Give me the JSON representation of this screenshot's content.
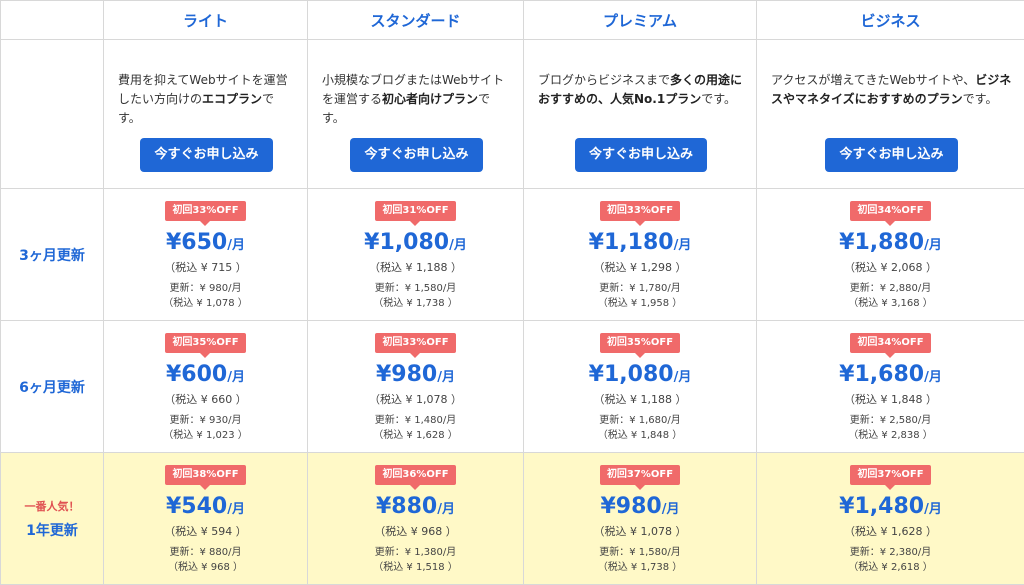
{
  "plans": [
    {
      "name": "ライト",
      "desc_plain": "費用を抑えてWebサイトを運営したい方向けの",
      "desc_bold": "エコプラン",
      "desc_tail": "です。",
      "button": "今すぐお申し込み"
    },
    {
      "name": "スタンダード",
      "desc_plain": "小規模なブログまたはWebサイトを運営する",
      "desc_bold": "初心者向けプラン",
      "desc_tail": "です。",
      "button": "今すぐお申し込み"
    },
    {
      "name": "プレミアム",
      "desc_plain": "ブログからビジネスまで",
      "desc_bold": "多くの用途におすすめの、人気No.1プラン",
      "desc_tail": "です。",
      "button": "今すぐお申し込み"
    },
    {
      "name": "ビジネス",
      "desc_plain": "アクセスが増えてきたWebサイトや、",
      "desc_bold": "ビジネスやマネタイズにおすすめのプラン",
      "desc_tail": "です。",
      "button": "今すぐお申し込み"
    }
  ],
  "rows": [
    {
      "label": "3ヶ月更新",
      "popular": "",
      "cells": [
        {
          "badge": "初回33%OFF",
          "price": "¥650",
          "unit": "/月",
          "tax": "（税込 ¥ 715 ）",
          "renew": "更新：¥ 980/月",
          "renew_tax": "（税込 ¥ 1,078 ）"
        },
        {
          "badge": "初回31%OFF",
          "price": "¥1,080",
          "unit": "/月",
          "tax": "（税込 ¥ 1,188 ）",
          "renew": "更新：¥ 1,580/月",
          "renew_tax": "（税込 ¥ 1,738 ）"
        },
        {
          "badge": "初回33%OFF",
          "price": "¥1,180",
          "unit": "/月",
          "tax": "（税込 ¥ 1,298 ）",
          "renew": "更新：¥ 1,780/月",
          "renew_tax": "（税込 ¥ 1,958 ）"
        },
        {
          "badge": "初回34%OFF",
          "price": "¥1,880",
          "unit": "/月",
          "tax": "（税込 ¥ 2,068 ）",
          "renew": "更新：¥ 2,880/月",
          "renew_tax": "（税込 ¥ 3,168 ）"
        }
      ]
    },
    {
      "label": "6ヶ月更新",
      "popular": "",
      "cells": [
        {
          "badge": "初回35%OFF",
          "price": "¥600",
          "unit": "/月",
          "tax": "（税込 ¥ 660 ）",
          "renew": "更新：¥ 930/月",
          "renew_tax": "（税込 ¥ 1,023 ）"
        },
        {
          "badge": "初回33%OFF",
          "price": "¥980",
          "unit": "/月",
          "tax": "（税込 ¥ 1,078 ）",
          "renew": "更新：¥ 1,480/月",
          "renew_tax": "（税込 ¥ 1,628 ）"
        },
        {
          "badge": "初回35%OFF",
          "price": "¥1,080",
          "unit": "/月",
          "tax": "（税込 ¥ 1,188 ）",
          "renew": "更新：¥ 1,680/月",
          "renew_tax": "（税込 ¥ 1,848 ）"
        },
        {
          "badge": "初回34%OFF",
          "price": "¥1,680",
          "unit": "/月",
          "tax": "（税込 ¥ 1,848 ）",
          "renew": "更新：¥ 2,580/月",
          "renew_tax": "（税込 ¥ 2,838 ）"
        }
      ]
    },
    {
      "label": "1年更新",
      "popular": "一番人気！",
      "cells": [
        {
          "badge": "初回38%OFF",
          "price": "¥540",
          "unit": "/月",
          "tax": "（税込 ¥ 594 ）",
          "renew": "更新：¥ 880/月",
          "renew_tax": "（税込 ¥ 968 ）"
        },
        {
          "badge": "初回36%OFF",
          "price": "¥880",
          "unit": "/月",
          "tax": "（税込 ¥ 968 ）",
          "renew": "更新：¥ 1,380/月",
          "renew_tax": "（税込 ¥ 1,518 ）"
        },
        {
          "badge": "初回37%OFF",
          "price": "¥980",
          "unit": "/月",
          "tax": "（税込 ¥ 1,078 ）",
          "renew": "更新：¥ 1,580/月",
          "renew_tax": "（税込 ¥ 1,738 ）"
        },
        {
          "badge": "初回37%OFF",
          "price": "¥1,480",
          "unit": "/月",
          "tax": "（税込 ¥ 1,628 ）",
          "renew": "更新：¥ 2,380/月",
          "renew_tax": "（税込 ¥ 2,618 ）"
        }
      ]
    }
  ],
  "colors": {
    "accent": "#1f67d6",
    "badge": "#f06a6a",
    "highlight": "#fff9c7",
    "popular": "#e05252"
  }
}
